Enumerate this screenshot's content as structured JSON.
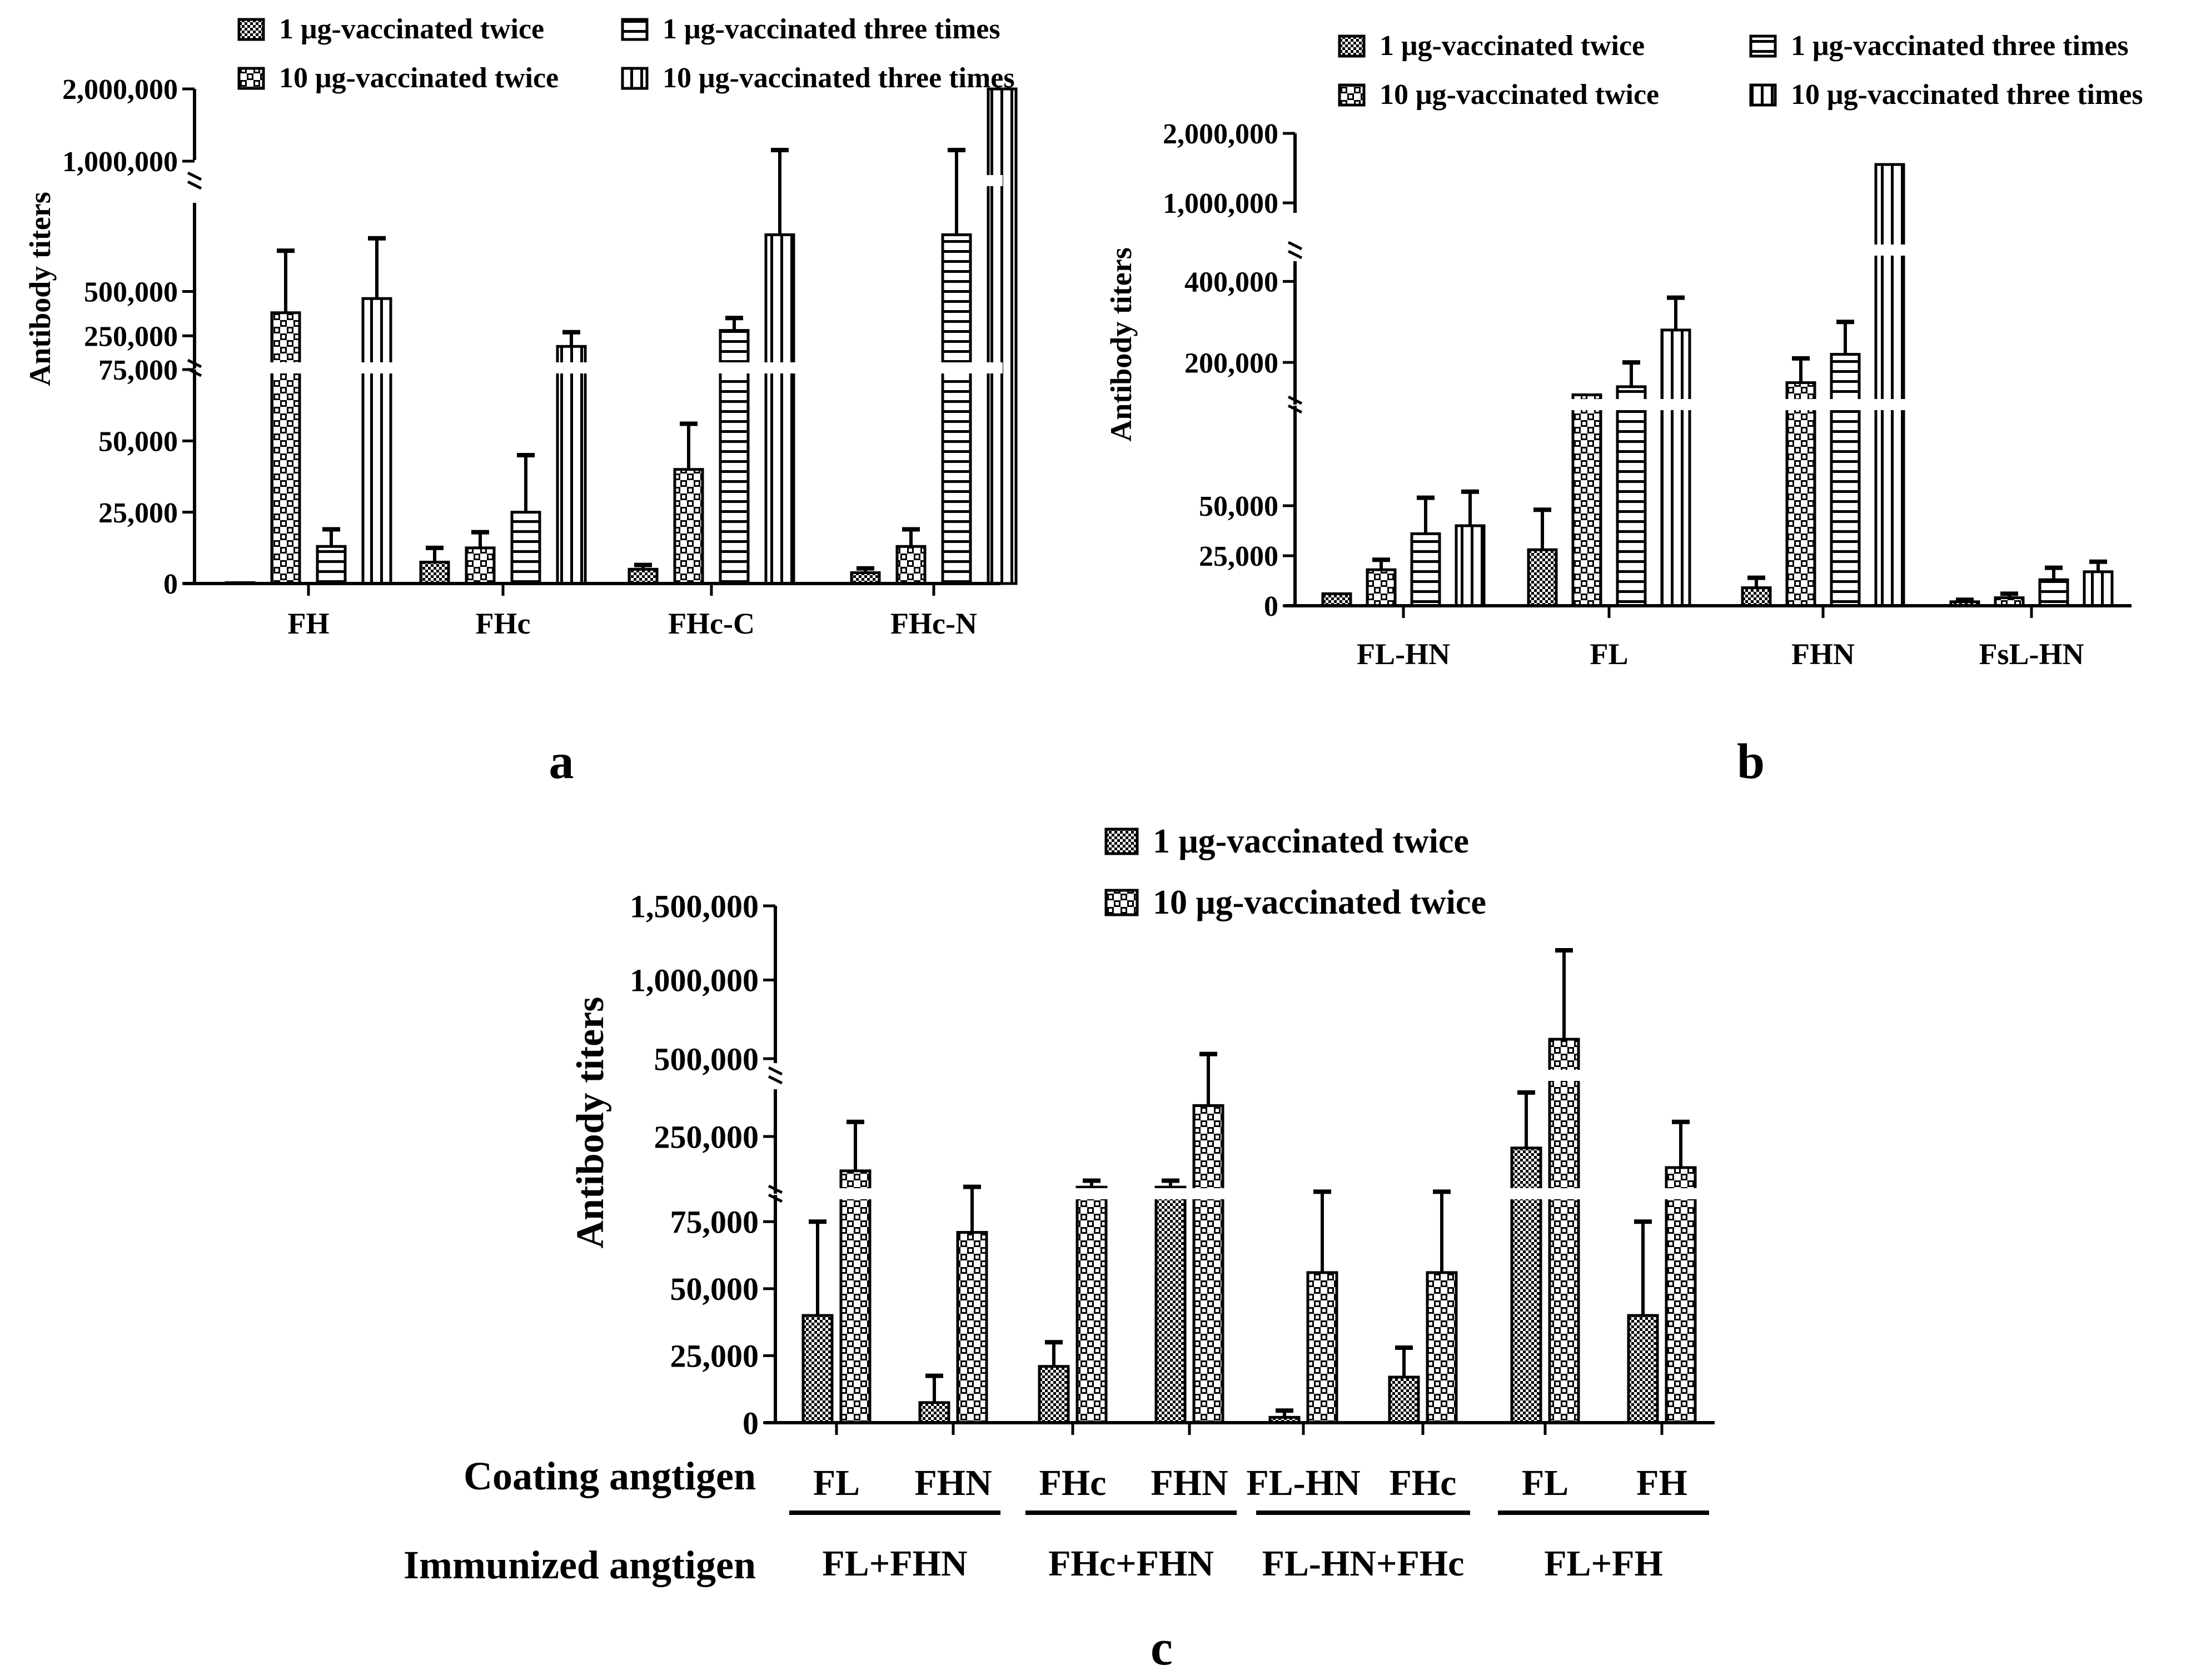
{
  "chart_data": [
    {
      "type": "bar",
      "panel_label": "a",
      "ylabel": "Antibody titers",
      "xlabel": "",
      "categories": [
        "FH",
        "FHc",
        "FHc-C",
        "FHc-N"
      ],
      "series": [
        {
          "name": "1 μg-vaccinated twice",
          "pattern": "fine-check",
          "values": [
            300,
            7500,
            5000,
            3800
          ],
          "errors": [
            0,
            5000,
            1500,
            1500
          ]
        },
        {
          "name": "10 μg-vaccinated twice",
          "pattern": "big-check",
          "values": [
            380000,
            12500,
            40000,
            13000
          ],
          "errors": [
            350000,
            5500,
            16000,
            6000
          ]
        },
        {
          "name": "1 μg-vaccinated three times",
          "pattern": "hlines",
          "values": [
            13000,
            25000,
            280000,
            820000
          ],
          "errors": [
            6000,
            20000,
            70000,
            300000
          ]
        },
        {
          "name": "10 μg-vaccinated three times",
          "pattern": "vlines",
          "values": [
            460000,
            190000,
            820000,
            2000000
          ],
          "errors": [
            340000,
            80000,
            300000,
            0
          ]
        }
      ],
      "y_ticks": [
        "0",
        "25,000",
        "50,000",
        "75,000",
        "250,000",
        "500,000",
        "1,000,000",
        "2,000,000"
      ],
      "axis_segments": [
        [
          0,
          75000
        ],
        [
          75000,
          1000000
        ],
        [
          1000000,
          2000000
        ]
      ]
    },
    {
      "type": "bar",
      "panel_label": "b",
      "ylabel": "Antibody titers",
      "xlabel": "",
      "categories": [
        "FL-HN",
        "FL",
        "FHN",
        "FsL-HN"
      ],
      "series": [
        {
          "name": "1 μg-vaccinated twice",
          "pattern": "fine-check",
          "values": [
            6000,
            28000,
            9000,
            2000
          ],
          "errors": [
            0,
            20000,
            5000,
            1000
          ]
        },
        {
          "name": "10 μg-vaccinated twice",
          "pattern": "big-check",
          "values": [
            18000,
            120000,
            150000,
            4000
          ],
          "errors": [
            5000,
            0,
            60000,
            2000
          ]
        },
        {
          "name": "1 μg-vaccinated three times",
          "pattern": "hlines",
          "values": [
            36000,
            140000,
            220000,
            13000
          ],
          "errors": [
            18000,
            60000,
            80000,
            6000
          ]
        },
        {
          "name": "10 μg-vaccinated three times",
          "pattern": "vlines",
          "values": [
            40000,
            280000,
            1600000,
            17000
          ],
          "errors": [
            17000,
            80000,
            0,
            5000
          ]
        }
      ],
      "y_ticks": [
        "0",
        "25,000",
        "50,000",
        "200,000",
        "400,000",
        "1,000,000",
        "2,000,000"
      ],
      "axis_segments": [
        [
          0,
          100000
        ],
        [
          100000,
          450000
        ],
        [
          1000000,
          2000000
        ]
      ]
    },
    {
      "type": "bar",
      "panel_label": "c",
      "ylabel": "Antibody titers",
      "row_labels": {
        "coating": "Coating angtigen",
        "immunized": "Immunized angtigen"
      },
      "categories": [
        "FL",
        "FHN",
        "FHc",
        "FHN",
        "FL-HN",
        "FHc",
        "FL",
        "FH"
      ],
      "immunized_groups": [
        "FL+FHN",
        "FHc+FHN",
        "FL-HN+FHc",
        "FL+FH"
      ],
      "series": [
        {
          "name": "1 μg-vaccinated twice",
          "pattern": "fine-check",
          "values": [
            40000,
            7500,
            21000,
            100000,
            2000,
            17000,
            220000,
            40000
          ],
          "errors": [
            35000,
            10000,
            9000,
            20000,
            2500,
            11000,
            170000,
            35000
          ]
        },
        {
          "name": "10 μg-vaccinated twice",
          "pattern": "big-check",
          "values": [
            150000,
            71000,
            100000,
            350000,
            56000,
            56000,
            600000,
            160000
          ],
          "errors": [
            150000,
            30000,
            20000,
            150000,
            30000,
            30000,
            600000,
            140000
          ]
        }
      ],
      "y_ticks": [
        "0",
        "25,000",
        "50,000",
        "75,000",
        "250,000",
        "500,000",
        "1,000,000",
        "1,500,000"
      ],
      "axis_segments": [
        [
          0,
          85000
        ],
        [
          85000,
          400000
        ],
        [
          450000,
          1500000
        ]
      ]
    }
  ]
}
